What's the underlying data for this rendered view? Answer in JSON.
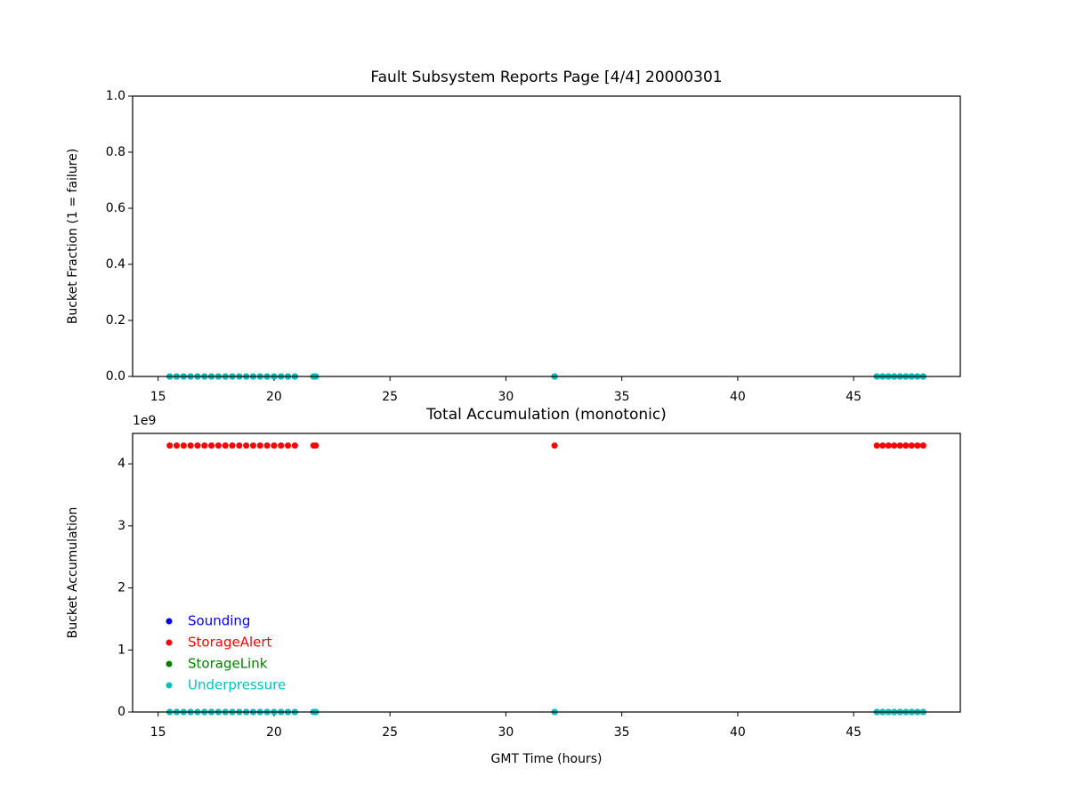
{
  "chart_data": [
    {
      "type": "scatter",
      "title": "Fault Subsystem Reports Page [4/4] 20000301",
      "y_label": "Bucket Fraction (1 = failure)",
      "x": [
        15.5,
        15.8,
        16.1,
        16.4,
        16.7,
        17.0,
        17.3,
        17.6,
        17.9,
        18.2,
        18.5,
        18.8,
        19.1,
        19.4,
        19.7,
        20.0,
        20.3,
        20.6,
        20.9,
        21.7,
        21.8,
        32.1,
        46.0,
        46.25,
        46.5,
        46.75,
        47.0,
        47.25,
        47.5,
        47.75,
        48.0
      ],
      "series": [
        {
          "name": "Sounding",
          "color": "#0000ff",
          "values": [
            0,
            0,
            0,
            0,
            0,
            0,
            0,
            0,
            0,
            0,
            0,
            0,
            0,
            0,
            0,
            0,
            0,
            0,
            0,
            0,
            0,
            0,
            0,
            0,
            0,
            0,
            0,
            0,
            0,
            0,
            0
          ]
        },
        {
          "name": "StorageAlert",
          "color": "#ff0000",
          "values": [
            0,
            0,
            0,
            0,
            0,
            0,
            0,
            0,
            0,
            0,
            0,
            0,
            0,
            0,
            0,
            0,
            0,
            0,
            0,
            0,
            0,
            0,
            0,
            0,
            0,
            0,
            0,
            0,
            0,
            0,
            0
          ]
        },
        {
          "name": "StorageLink",
          "color": "#008000",
          "values": [
            0,
            0,
            0,
            0,
            0,
            0,
            0,
            0,
            0,
            0,
            0,
            0,
            0,
            0,
            0,
            0,
            0,
            0,
            0,
            0,
            0,
            0,
            0,
            0,
            0,
            0,
            0,
            0,
            0,
            0,
            0
          ]
        },
        {
          "name": "Underpressure",
          "color": "#00bfbf",
          "values": [
            0,
            0,
            0,
            0,
            0,
            0,
            0,
            0,
            0,
            0,
            0,
            0,
            0,
            0,
            0,
            0,
            0,
            0,
            0,
            0,
            0,
            0,
            0,
            0,
            0,
            0,
            0,
            0,
            0,
            0,
            0
          ]
        }
      ],
      "xlim": [
        13.9,
        49.6
      ],
      "xticks": [
        15,
        20,
        25,
        30,
        35,
        40,
        45
      ],
      "ylim": [
        0,
        1
      ],
      "yticks": [
        {
          "value": 0,
          "label": "0.0"
        },
        0.2,
        0.4,
        0.6,
        0.8,
        {
          "value": 1,
          "label": "1.0"
        }
      ],
      "grid": false,
      "legend": false
    },
    {
      "type": "scatter",
      "title": "Total Accumulation (monotonic)",
      "x_label": "GMT Time (hours)",
      "y_label": "Bucket Accumulation",
      "y_offset_label": "1e9",
      "x": [
        15.5,
        15.8,
        16.1,
        16.4,
        16.7,
        17.0,
        17.3,
        17.6,
        17.9,
        18.2,
        18.5,
        18.8,
        19.1,
        19.4,
        19.7,
        20.0,
        20.3,
        20.6,
        20.9,
        21.7,
        21.8,
        32.1,
        46.0,
        46.25,
        46.5,
        46.75,
        47.0,
        47.25,
        47.5,
        47.75,
        48.0
      ],
      "series": [
        {
          "name": "Sounding",
          "color": "#0000ff",
          "values": [
            0,
            0,
            0,
            0,
            0,
            0,
            0,
            0,
            0,
            0,
            0,
            0,
            0,
            0,
            0,
            0,
            0,
            0,
            0,
            0,
            0,
            0,
            0,
            0,
            0,
            0,
            0,
            0,
            0,
            0,
            0
          ]
        },
        {
          "name": "StorageAlert",
          "color": "#ff0000",
          "values": [
            4294967295,
            4294967295,
            4294967295,
            4294967295,
            4294967295,
            4294967295,
            4294967295,
            4294967295,
            4294967295,
            4294967295,
            4294967295,
            4294967295,
            4294967295,
            4294967295,
            4294967295,
            4294967295,
            4294967295,
            4294967295,
            4294967295,
            4294967295,
            4294967295,
            4294967295,
            4294967295,
            4294967295,
            4294967295,
            4294967295,
            4294967295,
            4294967295,
            4294967295,
            4294967295,
            4294967295
          ]
        },
        {
          "name": "StorageLink",
          "color": "#008000",
          "values": [
            0,
            0,
            0,
            0,
            0,
            0,
            0,
            0,
            0,
            0,
            0,
            0,
            0,
            0,
            0,
            0,
            0,
            0,
            0,
            0,
            0,
            0,
            0,
            0,
            0,
            0,
            0,
            0,
            0,
            0,
            0
          ]
        },
        {
          "name": "Underpressure",
          "color": "#00bfbf",
          "values": [
            0,
            0,
            0,
            0,
            0,
            0,
            0,
            0,
            0,
            0,
            0,
            0,
            0,
            0,
            0,
            0,
            0,
            0,
            0,
            0,
            0,
            0,
            0,
            0,
            0,
            0,
            0,
            0,
            0,
            0,
            0
          ]
        }
      ],
      "xlim": [
        13.9,
        49.6
      ],
      "xticks": [
        15,
        20,
        25,
        30,
        35,
        40,
        45
      ],
      "ylim": [
        0,
        4490000000
      ],
      "yticks": [
        0,
        {
          "value": 1000000000,
          "label": "1"
        },
        {
          "value": 2000000000,
          "label": "2"
        },
        {
          "value": 3000000000,
          "label": "3"
        },
        {
          "value": 4000000000,
          "label": "4"
        }
      ],
      "grid": false,
      "legend": "lower left"
    }
  ]
}
